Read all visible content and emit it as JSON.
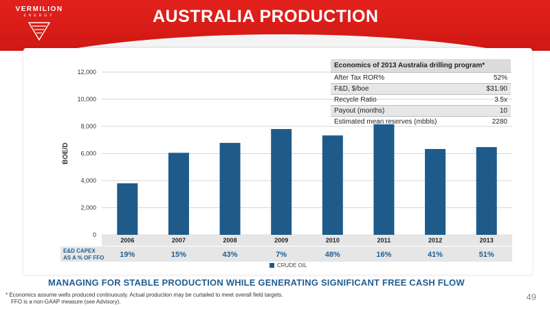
{
  "header": {
    "title": "AUSTRALIA PRODUCTION",
    "logo_name": "VERMILION",
    "logo_sub": "ENERGY"
  },
  "chart_data": {
    "type": "bar",
    "categories": [
      "2006",
      "2007",
      "2008",
      "2009",
      "2010",
      "2011",
      "2012",
      "2013"
    ],
    "series": [
      {
        "name": "CRUDE OIL",
        "values": [
          3800,
          6050,
          6780,
          7800,
          7330,
          8150,
          6330,
          6470
        ]
      }
    ],
    "ylabel": "BOE/D",
    "ylim": [
      0,
      12000
    ],
    "yticks": [
      0,
      2000,
      4000,
      6000,
      8000,
      10000,
      12000
    ],
    "ytick_labels": [
      "0",
      "2,000",
      "4,000",
      "6,000",
      "8,000",
      "10,000",
      "12,000"
    ],
    "grid": true,
    "color": "#1e5b8a",
    "legend_placement": "bottom-center",
    "capex_label": [
      "E&D CAPEX",
      "AS A % OF FFO"
    ],
    "capex_values": [
      "19%",
      "15%",
      "43%",
      "7%",
      "48%",
      "16%",
      "41%",
      "51%"
    ]
  },
  "economics": {
    "title": "Economics of 2013 Australia drilling program*",
    "rows": [
      {
        "label": "After Tax ROR%",
        "value": "52%"
      },
      {
        "label": "F&D, $/boe",
        "value": "$31.90"
      },
      {
        "label": "Recycle Ratio",
        "value": "3.5x"
      },
      {
        "label": "Payout (months)",
        "value": "10"
      },
      {
        "label": "Estimated mean reserves (mbbls)",
        "value": "2280"
      }
    ]
  },
  "footer": {
    "headline": "MANAGING FOR STABLE PRODUCTION WHILE GENERATING SIGNIFICANT FREE CASH FLOW",
    "note1": "* Economics assume wells produced continuously.  Actual production may be curtailed to meet overall field targets.",
    "note2": "FFO is a non-GAAP measure (see Advisory).",
    "page": "49"
  }
}
